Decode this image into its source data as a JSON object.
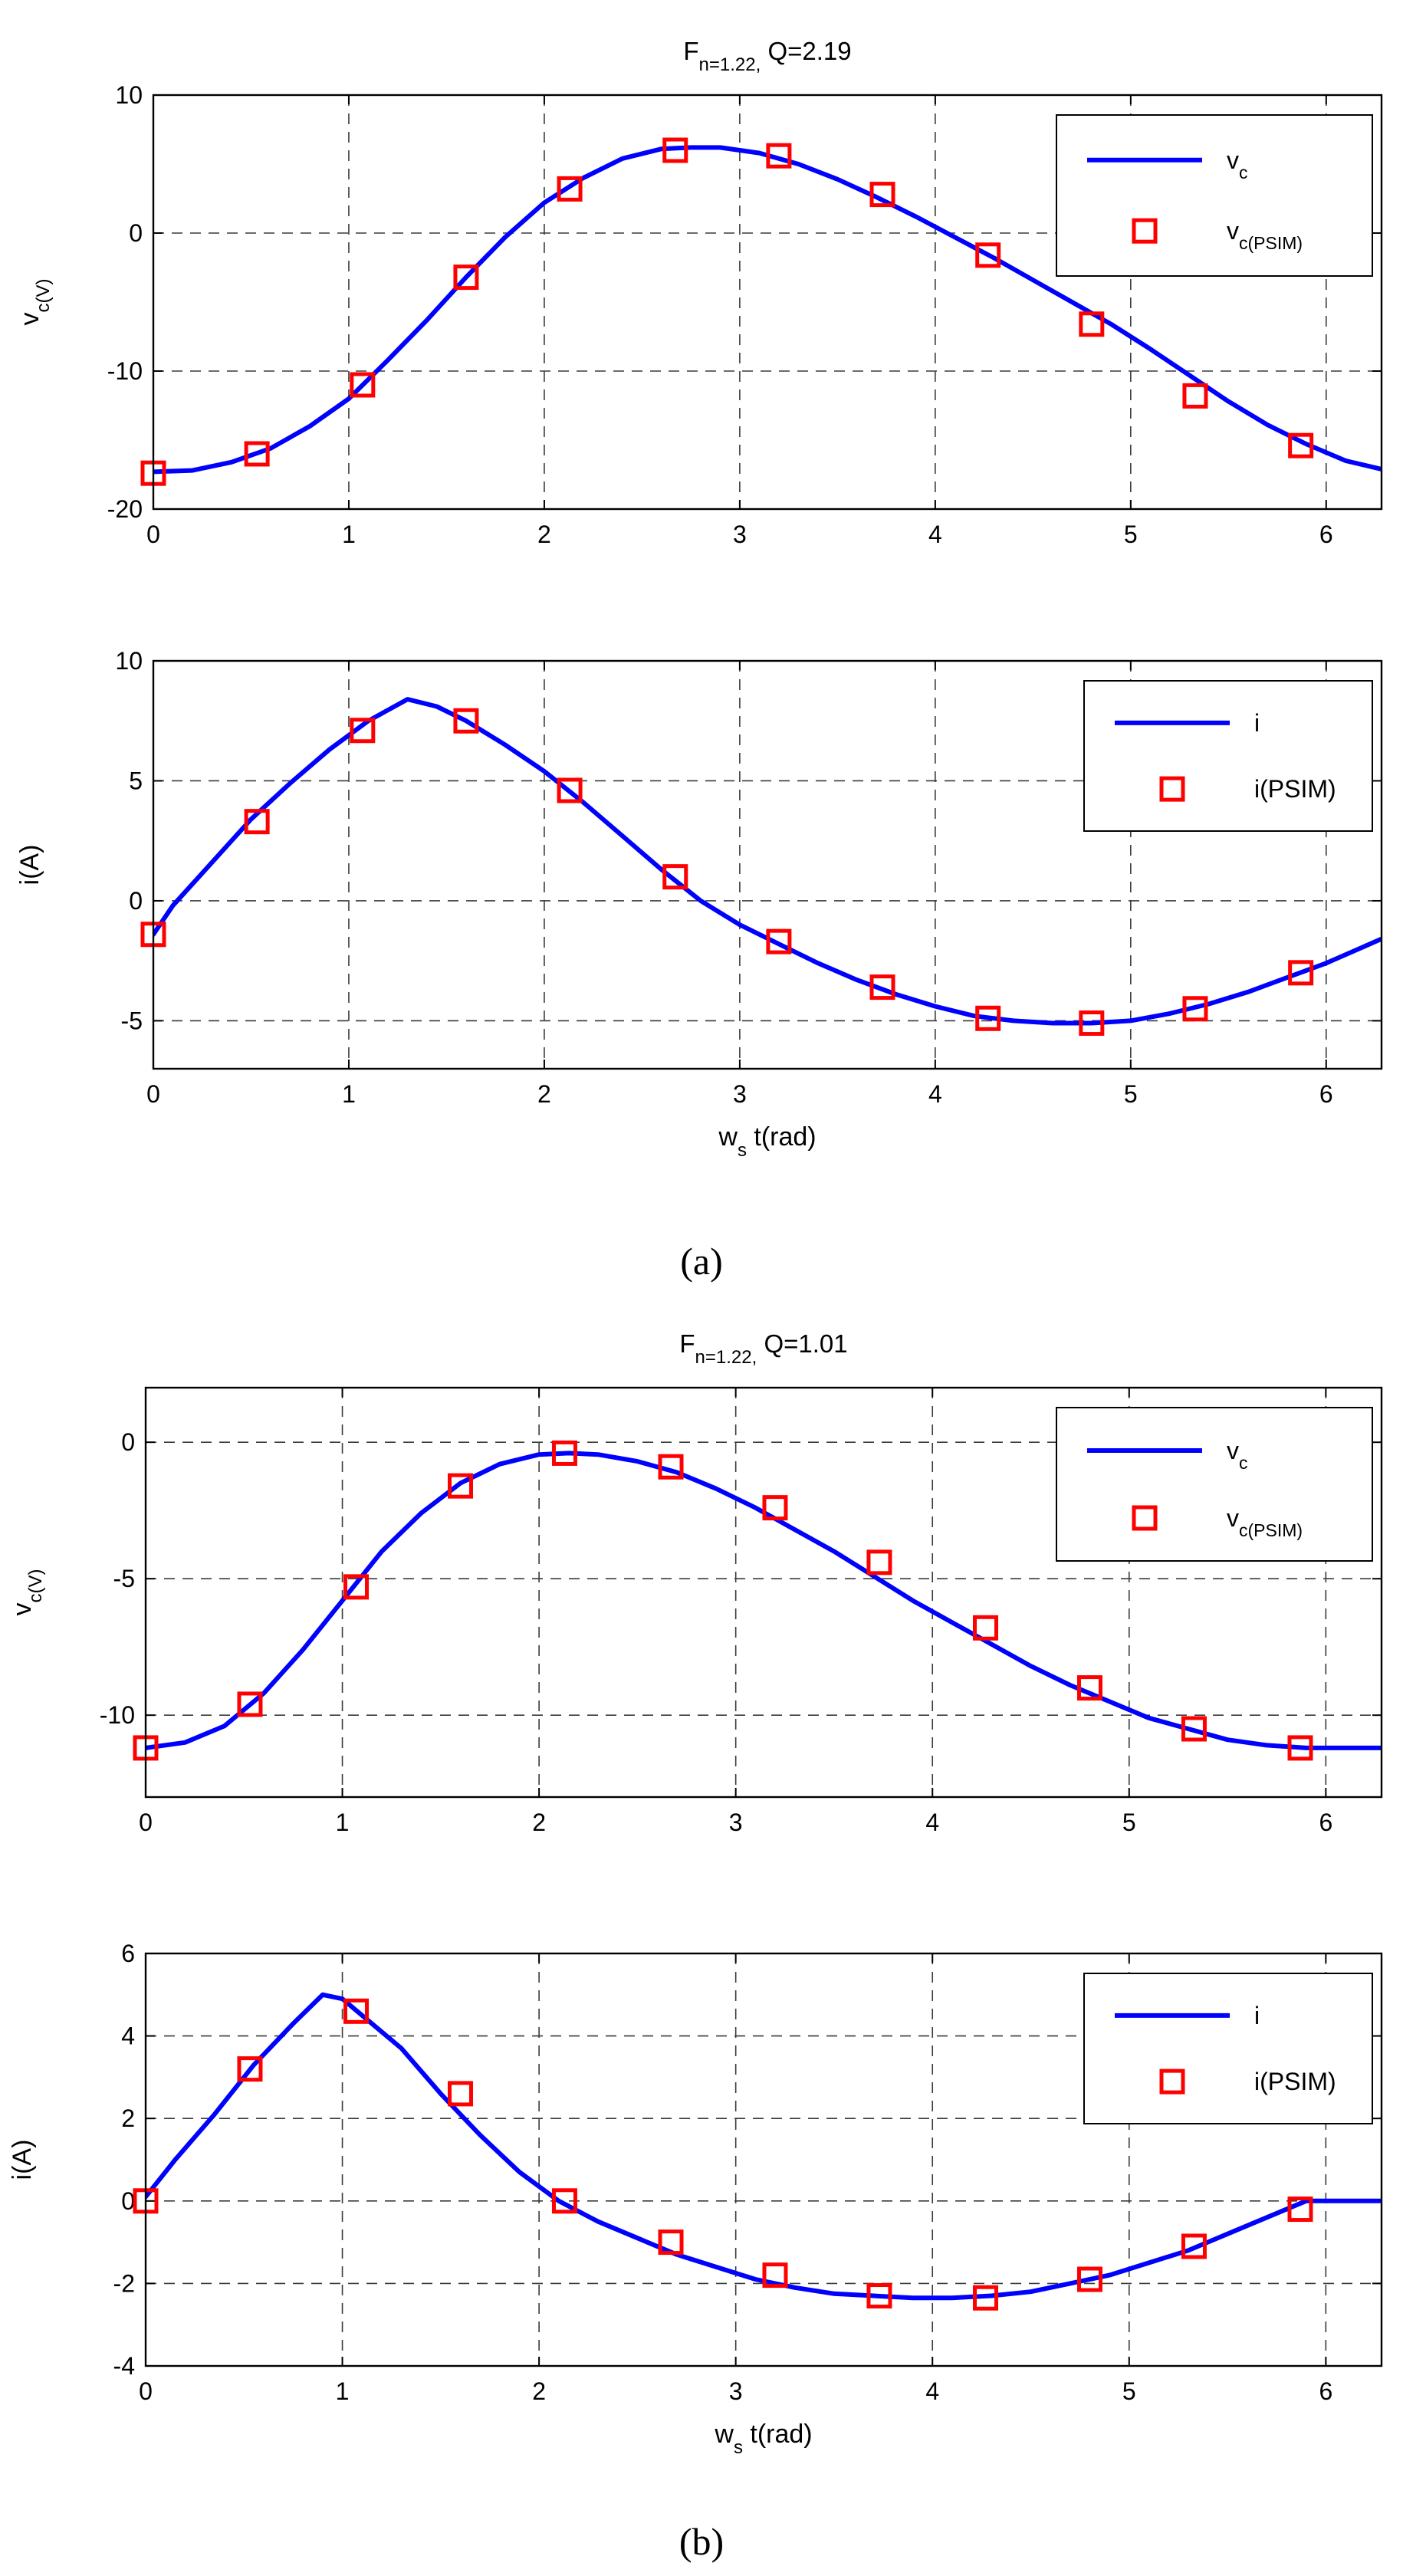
{
  "colors": {
    "line": "#0000ff",
    "marker": "#ff0000",
    "grid": "#3a3a3a"
  },
  "captions": {
    "a": "(a)",
    "b": "(b)"
  },
  "chart_data": [
    {
      "type": "line",
      "panel": "a-top",
      "title": "F_n=1.22, Q=2.19",
      "xlabel": "",
      "ylabel": "v_c(V)",
      "xlim": [
        0,
        6.2832
      ],
      "ylim": [
        -20,
        10
      ],
      "xticks": [
        0,
        1,
        2,
        3,
        4,
        5,
        6
      ],
      "yticks": [
        -20,
        -10,
        0,
        10
      ],
      "grid": true,
      "legend_position": "top-right",
      "series": [
        {
          "name": "v_c",
          "style": "line",
          "x": [
            0,
            0.2,
            0.4,
            0.6,
            0.8,
            1.0,
            1.2,
            1.4,
            1.6,
            1.8,
            2.0,
            2.2,
            2.4,
            2.6,
            2.75,
            2.9,
            3.1,
            3.3,
            3.5,
            3.7,
            3.9,
            4.1,
            4.3,
            4.5,
            4.7,
            4.9,
            5.1,
            5.3,
            5.5,
            5.7,
            5.9,
            6.1,
            6.28
          ],
          "values": [
            -17.3,
            -17.2,
            -16.6,
            -15.6,
            -14.0,
            -12.0,
            -9.2,
            -6.3,
            -3.2,
            -0.3,
            2.2,
            4.0,
            5.4,
            6.1,
            6.2,
            6.2,
            5.8,
            5.0,
            3.9,
            2.6,
            1.2,
            -0.3,
            -1.8,
            -3.4,
            -5.0,
            -6.6,
            -8.4,
            -10.3,
            -12.2,
            -13.9,
            -15.3,
            -16.5,
            -17.1
          ]
        },
        {
          "name": "v_c(PSIM)",
          "style": "markers",
          "x": [
            0,
            0.53,
            1.07,
            1.6,
            2.13,
            2.67,
            3.2,
            3.73,
            4.27,
            4.8,
            5.33,
            5.87
          ],
          "values": [
            -17.4,
            -16.0,
            -11.0,
            -3.2,
            3.2,
            6.0,
            5.6,
            2.8,
            -1.6,
            -6.6,
            -11.8,
            -15.4
          ]
        }
      ]
    },
    {
      "type": "line",
      "panel": "a-bottom",
      "title": "",
      "xlabel": "w_s t(rad)",
      "ylabel": "i(A)",
      "xlim": [
        0,
        6.2832
      ],
      "ylim": [
        -7,
        10
      ],
      "xticks": [
        0,
        1,
        2,
        3,
        4,
        5,
        6
      ],
      "yticks": [
        -5,
        0,
        5,
        10
      ],
      "grid": true,
      "legend_position": "top-right",
      "series": [
        {
          "name": "i",
          "style": "line",
          "x": [
            0,
            0.1,
            0.3,
            0.5,
            0.7,
            0.9,
            1.1,
            1.3,
            1.45,
            1.6,
            1.8,
            2.0,
            2.2,
            2.4,
            2.6,
            2.8,
            3.0,
            3.2,
            3.4,
            3.6,
            3.8,
            4.0,
            4.2,
            4.4,
            4.6,
            4.8,
            5.0,
            5.2,
            5.4,
            5.6,
            5.8,
            6.0,
            6.28
          ],
          "values": [
            -1.4,
            -0.2,
            1.6,
            3.4,
            4.9,
            6.3,
            7.5,
            8.4,
            8.1,
            7.5,
            6.5,
            5.4,
            4.1,
            2.7,
            1.3,
            0.0,
            -1.0,
            -1.8,
            -2.6,
            -3.3,
            -3.9,
            -4.4,
            -4.8,
            -5.0,
            -5.1,
            -5.1,
            -5.0,
            -4.7,
            -4.3,
            -3.8,
            -3.2,
            -2.6,
            -1.6
          ]
        },
        {
          "name": "i(PSIM)",
          "style": "markers",
          "x": [
            0,
            0.53,
            1.07,
            1.6,
            2.13,
            2.67,
            3.2,
            3.73,
            4.27,
            4.8,
            5.33,
            5.87
          ],
          "values": [
            -1.4,
            3.3,
            7.1,
            7.5,
            4.6,
            1.0,
            -1.7,
            -3.6,
            -4.9,
            -5.1,
            -4.5,
            -3.0
          ]
        }
      ]
    },
    {
      "type": "line",
      "panel": "b-top",
      "title": "F_n=1.22, Q=1.01",
      "xlabel": "",
      "ylabel": "v_c(V)",
      "xlim": [
        0,
        6.2832
      ],
      "ylim": [
        -13,
        2
      ],
      "xticks": [
        0,
        1,
        2,
        3,
        4,
        5,
        6
      ],
      "yticks": [
        -10,
        -5,
        0
      ],
      "grid": true,
      "legend_position": "top-right",
      "series": [
        {
          "name": "v_c",
          "style": "line",
          "x": [
            0,
            0.2,
            0.4,
            0.6,
            0.8,
            1.0,
            1.2,
            1.4,
            1.6,
            1.8,
            2.0,
            2.15,
            2.3,
            2.5,
            2.7,
            2.9,
            3.1,
            3.3,
            3.5,
            3.7,
            3.9,
            4.1,
            4.3,
            4.5,
            4.7,
            4.9,
            5.1,
            5.3,
            5.5,
            5.7,
            5.9,
            6.1,
            6.28
          ],
          "values": [
            -11.2,
            -11.0,
            -10.4,
            -9.2,
            -7.6,
            -5.8,
            -4.0,
            -2.6,
            -1.5,
            -0.8,
            -0.45,
            -0.4,
            -0.45,
            -0.7,
            -1.1,
            -1.7,
            -2.4,
            -3.2,
            -4.0,
            -4.9,
            -5.8,
            -6.6,
            -7.4,
            -8.2,
            -8.9,
            -9.5,
            -10.1,
            -10.5,
            -10.9,
            -11.1,
            -11.2,
            -11.2,
            -11.2
          ]
        },
        {
          "name": "v_c(PSIM)",
          "style": "markers",
          "x": [
            0,
            0.53,
            1.07,
            1.6,
            2.13,
            2.67,
            3.2,
            3.73,
            4.27,
            4.8,
            5.33,
            5.87
          ],
          "values": [
            -11.2,
            -9.6,
            -5.3,
            -1.6,
            -0.4,
            -0.9,
            -2.4,
            -4.4,
            -6.8,
            -9.0,
            -10.5,
            -11.2
          ]
        }
      ]
    },
    {
      "type": "line",
      "panel": "b-bottom",
      "title": "",
      "xlabel": "w_s t(rad)",
      "ylabel": "i(A)",
      "xlim": [
        0,
        6.2832
      ],
      "ylim": [
        -4,
        6
      ],
      "xticks": [
        0,
        1,
        2,
        3,
        4,
        5,
        6
      ],
      "yticks": [
        -4,
        -2,
        0,
        2,
        4,
        6
      ],
      "grid": true,
      "legend_position": "top-right",
      "series": [
        {
          "name": "i",
          "style": "line",
          "x": [
            0,
            0.15,
            0.35,
            0.55,
            0.75,
            0.9,
            1.0,
            1.1,
            1.3,
            1.5,
            1.7,
            1.9,
            2.1,
            2.3,
            2.5,
            2.7,
            2.9,
            3.1,
            3.3,
            3.5,
            3.7,
            3.9,
            4.1,
            4.3,
            4.5,
            4.7,
            4.9,
            5.1,
            5.3,
            5.5,
            5.7,
            5.9,
            6.1,
            6.28
          ],
          "values": [
            0.1,
            1.0,
            2.1,
            3.3,
            4.3,
            5.0,
            4.9,
            4.5,
            3.7,
            2.6,
            1.6,
            0.7,
            0.0,
            -0.5,
            -0.9,
            -1.3,
            -1.6,
            -1.9,
            -2.1,
            -2.25,
            -2.3,
            -2.35,
            -2.35,
            -2.3,
            -2.2,
            -2.0,
            -1.8,
            -1.5,
            -1.2,
            -0.8,
            -0.4,
            0.0,
            0.0,
            0.0
          ]
        },
        {
          "name": "i(PSIM)",
          "style": "markers",
          "x": [
            0,
            0.53,
            1.07,
            1.6,
            2.13,
            2.67,
            3.2,
            3.73,
            4.27,
            4.8,
            5.33,
            5.87
          ],
          "values": [
            0.0,
            3.2,
            4.6,
            2.6,
            0.0,
            -1.0,
            -1.8,
            -2.3,
            -2.35,
            -1.9,
            -1.1,
            -0.2
          ]
        }
      ]
    }
  ]
}
